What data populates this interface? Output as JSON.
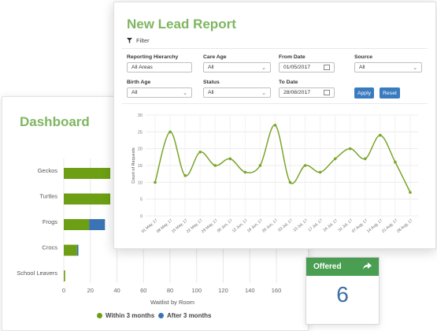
{
  "dashboard": {
    "title": "Dashboard",
    "x_axis_title": "Waitlist by Room",
    "legend": [
      {
        "label": "Within 3 months",
        "color": "#6c9f14"
      },
      {
        "label": "After 3 months",
        "color": "#3a74b4"
      }
    ]
  },
  "offered": {
    "title": "Offered",
    "value": "6",
    "arrow_icon": "share-arrow-icon"
  },
  "report": {
    "title": "New Lead Report",
    "filter_label": "Filter",
    "fields": {
      "reporting_hierarchy": {
        "label": "Reporting Hierarchy",
        "value": "All Areas"
      },
      "care_age": {
        "label": "Care Age",
        "value": "All"
      },
      "from_date": {
        "label": "From Date",
        "value": "01/05/2017"
      },
      "source": {
        "label": "Source",
        "value": "All"
      },
      "birth_age": {
        "label": "Birth Age",
        "value": "All"
      },
      "status": {
        "label": "Status",
        "value": "All"
      },
      "to_date": {
        "label": "To Date",
        "value": "28/08/2017"
      }
    },
    "apply_label": "Apply",
    "reset_label": "Reset"
  },
  "chart_data": [
    {
      "type": "bar",
      "orientation": "horizontal",
      "stacked": true,
      "categories": [
        "Geckos",
        "Turtles",
        "Frogs",
        "Crocs",
        "School Leavers"
      ],
      "series": [
        {
          "name": "Within 3 months",
          "values": [
            35,
            35,
            19,
            10,
            1
          ]
        },
        {
          "name": "After 3 months",
          "values": [
            0,
            0,
            12,
            1,
            0
          ]
        }
      ],
      "xlabel": "Waitlist by Room",
      "xlim": [
        0,
        160
      ],
      "xticks": [
        0,
        20,
        40,
        60,
        80,
        100,
        120,
        140,
        160
      ],
      "legend": "bottom",
      "grid": true
    },
    {
      "type": "line",
      "x": [
        "01 May 17",
        "08 May 17",
        "15 May 17",
        "22 May 17",
        "29 May 17",
        "05 Jun 17",
        "12 Jun 17",
        "19 Jun 17",
        "26 Jun 17",
        "03 Jul 17",
        "10 Jul 17",
        "17 Jul 17",
        "24 Jul 17",
        "31 Jul 17",
        "07 Aug 17",
        "14 Aug 17",
        "21 Aug 17",
        "28 Aug 17"
      ],
      "tick_labels": [
        "01 May, 17",
        "08 May, 17",
        "15 May, 17",
        "22 May, 17",
        "29 May, 17",
        "05 Jun, 17",
        "12 Jun, 17",
        "19 Jun, 17",
        "26 Jun, 17",
        "03 Jul, 17",
        "10 Jul, 17",
        "17 Jul, 17",
        "24 Jul, 17",
        "31 Jul, 17",
        "07 Aug, 17",
        "14 Aug, 17",
        "21 Aug, 17",
        "28 Aug, 17"
      ],
      "series": [
        {
          "values": [
            10,
            25,
            12,
            19,
            15,
            17,
            13,
            15,
            27,
            10,
            15,
            13,
            17,
            20,
            17,
            24,
            16,
            7
          ]
        }
      ],
      "ylabel": "Count of Requests",
      "ylim": [
        0,
        30
      ],
      "yticks": [
        0,
        5,
        10,
        15,
        20,
        25,
        30
      ],
      "grid": true,
      "color": "#7aa52a"
    }
  ]
}
